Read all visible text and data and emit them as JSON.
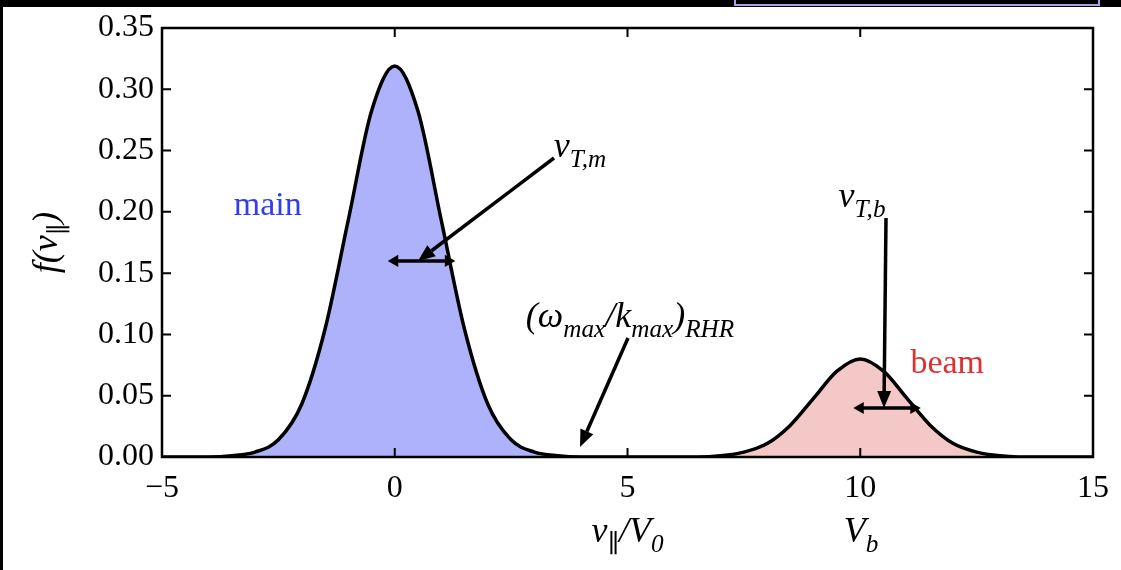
{
  "chart_data": {
    "type": "area",
    "xlabel": "v$_{∥}$/V$_{0}$",
    "ylabel": "f(v$_{∥}$)",
    "xlim": [
      -5,
      15
    ],
    "xticks": [
      {
        "value": -5,
        "label": "−5"
      },
      0,
      5,
      10,
      15
    ],
    "ylim": [
      0,
      0.35
    ],
    "yticks": [
      {
        "value": 0,
        "label": "0.00"
      },
      0.05,
      {
        "value": 0.1,
        "label": "0.10"
      },
      0.15,
      {
        "value": 0.2,
        "label": "0.20"
      },
      0.25,
      {
        "value": 0.3,
        "label": "0.30"
      },
      0.35
    ],
    "series": [
      {
        "name": "main",
        "color": "#aeb2fa",
        "x": [
          -5,
          -4.5,
          -4,
          -3.5,
          -3,
          -2.5,
          -2,
          -1.5,
          -1,
          -0.5,
          0,
          0.5,
          1,
          1.5,
          2,
          2.5,
          3,
          3.5,
          4,
          4.5,
          5
        ],
        "values": [
          0,
          0,
          0,
          0.001,
          0.004,
          0.014,
          0.043,
          0.104,
          0.193,
          0.282,
          0.319,
          0.282,
          0.193,
          0.104,
          0.043,
          0.014,
          0.004,
          0.001,
          0,
          0,
          0
        ]
      },
      {
        "name": "beam",
        "color": "#f5c8c8",
        "x": [
          5,
          5.5,
          6,
          6.5,
          7,
          7.5,
          8,
          8.5,
          9,
          9.5,
          10,
          10.5,
          11,
          11.5,
          12,
          12.5,
          13,
          13.5,
          14,
          14.5,
          15
        ],
        "values": [
          0,
          0,
          0,
          0,
          0.001,
          0.004,
          0.011,
          0.026,
          0.048,
          0.07,
          0.08,
          0.07,
          0.048,
          0.026,
          0.011,
          0.004,
          0.001,
          0,
          0,
          0,
          0
        ]
      },
      {
        "type": "line",
        "color": "#000000",
        "x": [
          -5,
          -4.5,
          -4,
          -3.5,
          -3,
          -2.5,
          -2,
          -1.5,
          -1,
          -0.5,
          0,
          0.5,
          1,
          1.5,
          2,
          2.5,
          3,
          3.5,
          4,
          4.5,
          5,
          5.5,
          6,
          6.5,
          7,
          7.5,
          8,
          8.5,
          9,
          9.5,
          10,
          10.5,
          11,
          11.5,
          12,
          12.5,
          13,
          13.5,
          14,
          14.5,
          15
        ],
        "values": [
          0,
          0,
          0,
          0.001,
          0.004,
          0.014,
          0.043,
          0.104,
          0.193,
          0.282,
          0.319,
          0.282,
          0.193,
          0.104,
          0.043,
          0.014,
          0.004,
          0.001,
          0,
          0,
          0,
          0,
          0,
          0,
          0.001,
          0.004,
          0.011,
          0.026,
          0.048,
          0.07,
          0.08,
          0.07,
          0.048,
          0.026,
          0.011,
          0.004,
          0.001,
          0,
          0,
          0,
          0
        ]
      },
      {
        "type": "line",
        "color": "#000000",
        "marker": "triangle",
        "x": [
          0,
          1.15
        ],
        "values": [
          0.16,
          0.16
        ]
      },
      {
        "type": "line",
        "color": "#000000",
        "marker": "triangle",
        "x": [
          10,
          11.15
        ],
        "values": [
          0.04,
          0.04
        ]
      }
    ],
    "annotations": [
      "v$_{T,m}$",
      "v$_{T,b}$",
      "(ω$_{max}$/k$_{max}$)$_{RHR}$",
      "V$_{b}$"
    ]
  }
}
